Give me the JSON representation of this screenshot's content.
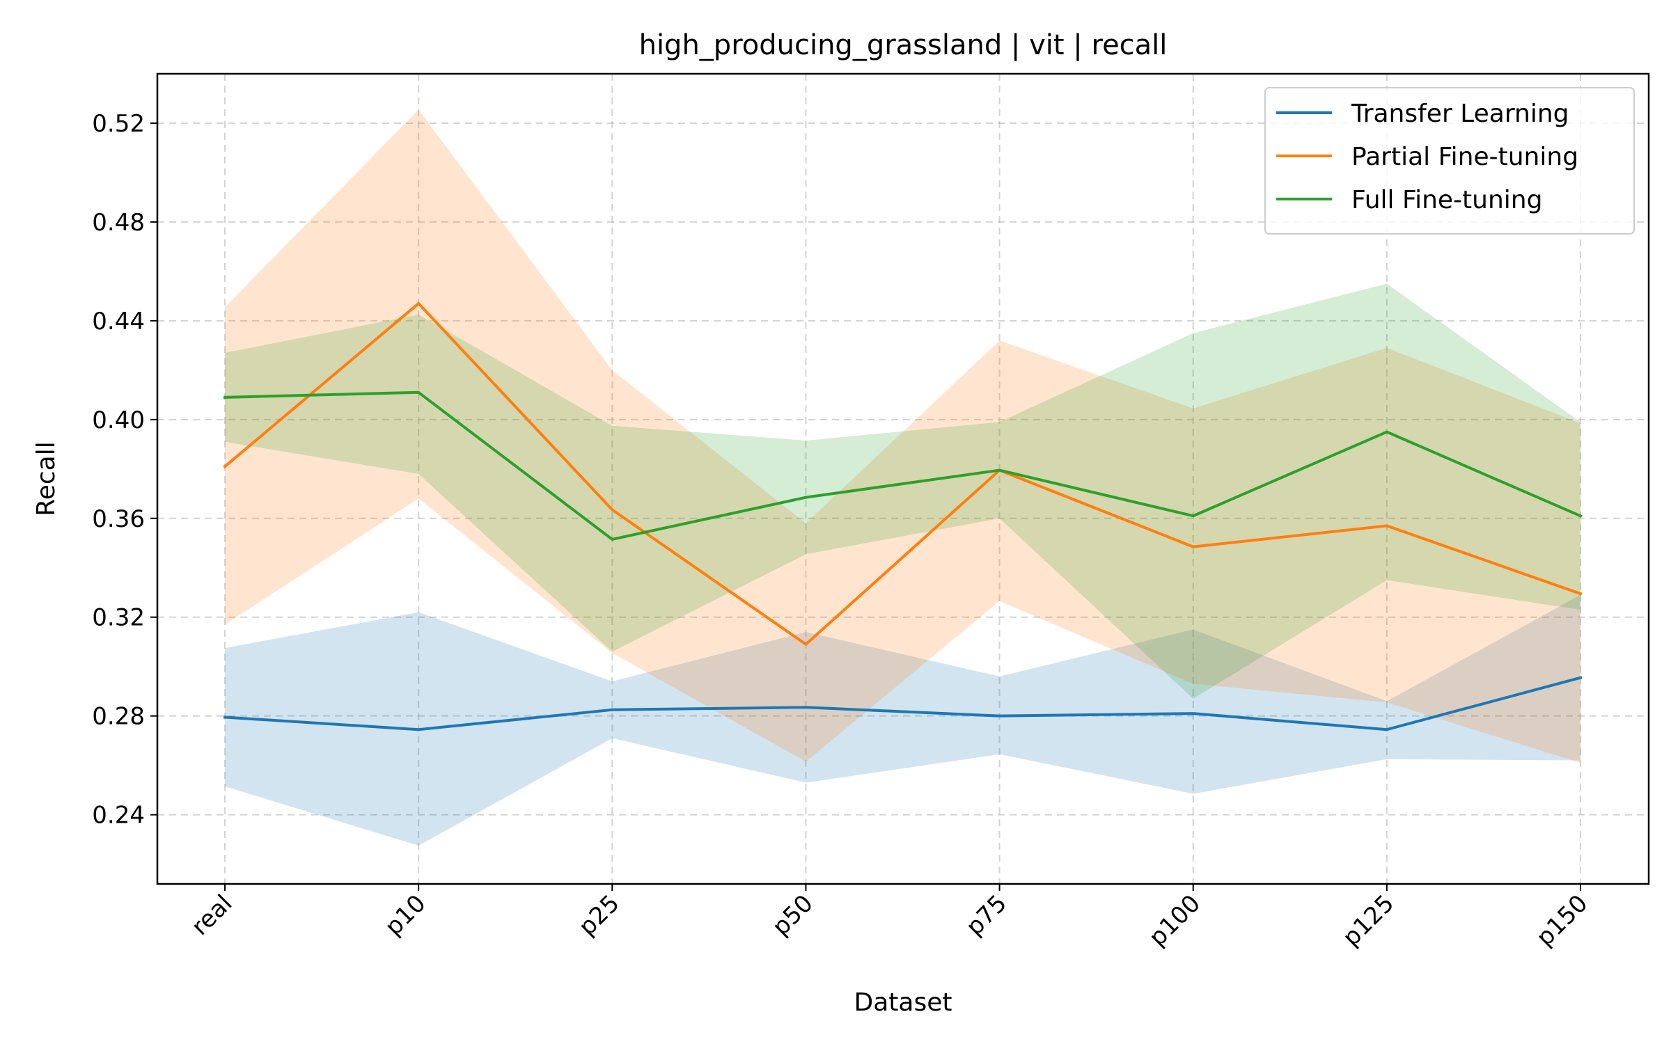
{
  "chart_data": {
    "type": "line",
    "title": "high_producing_grassland | vit | recall",
    "xlabel": "Dataset",
    "ylabel": "Recall",
    "categories": [
      "real",
      "p10",
      "p25",
      "p50",
      "p75",
      "p100",
      "p125",
      "p150"
    ],
    "ylim": [
      0.212,
      0.54
    ],
    "yticks": [
      0.24,
      0.28,
      0.32,
      0.36,
      0.4,
      0.44,
      0.48,
      0.52
    ],
    "ytick_labels": [
      "0.24",
      "0.28",
      "0.32",
      "0.36",
      "0.40",
      "0.44",
      "0.48",
      "0.52"
    ],
    "grid": true,
    "legend_position": "top-right",
    "series": [
      {
        "name": "Transfer Learning",
        "color": "#1f77b4",
        "values": [
          0.2795,
          0.2745,
          0.2825,
          0.2835,
          0.28,
          0.281,
          0.2745,
          0.2955
        ],
        "lower": [
          0.2515,
          0.2275,
          0.271,
          0.253,
          0.2645,
          0.2485,
          0.2625,
          0.262
        ],
        "upper": [
          0.3075,
          0.322,
          0.294,
          0.314,
          0.296,
          0.315,
          0.286,
          0.329
        ]
      },
      {
        "name": "Partial Fine-tuning",
        "color": "#ff7f0e",
        "values": [
          0.381,
          0.447,
          0.3635,
          0.309,
          0.3795,
          0.3485,
          0.357,
          0.3295
        ],
        "lower": [
          0.317,
          0.368,
          0.3055,
          0.2615,
          0.3265,
          0.293,
          0.2855,
          0.261
        ],
        "upper": [
          0.4455,
          0.5255,
          0.42,
          0.358,
          0.432,
          0.4045,
          0.429,
          0.3985
        ]
      },
      {
        "name": "Full Fine-tuning",
        "color": "#2ca02c",
        "values": [
          0.409,
          0.411,
          0.3515,
          0.3685,
          0.3795,
          0.361,
          0.395,
          0.361
        ],
        "lower": [
          0.391,
          0.378,
          0.306,
          0.3455,
          0.36,
          0.287,
          0.335,
          0.323
        ],
        "upper": [
          0.427,
          0.4425,
          0.3975,
          0.3915,
          0.399,
          0.435,
          0.455,
          0.399
        ]
      }
    ]
  }
}
